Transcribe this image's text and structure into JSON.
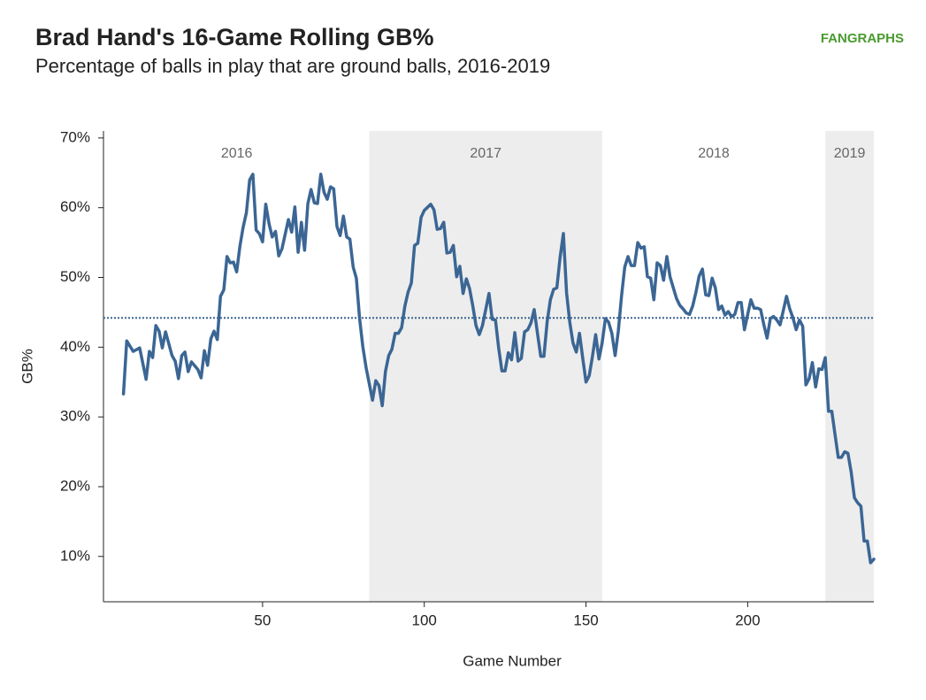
{
  "chart_data": {
    "type": "line",
    "title": "Brad Hand's 16-Game Rolling GB%",
    "subtitle": "Percentage of balls in play that are ground balls, 2016-2019",
    "logo": "FANGRAPHS",
    "x_label": "Game Number",
    "y_label": "GB%",
    "xlim": [
      1,
      239
    ],
    "ylim": [
      3.5,
      71
    ],
    "xticks": [
      50,
      100,
      150,
      200
    ],
    "yticks": [
      {
        "value": 10,
        "label": "10%"
      },
      {
        "value": 20,
        "label": "20%"
      },
      {
        "value": 30,
        "label": "30%"
      },
      {
        "value": 40,
        "label": "40%"
      },
      {
        "value": 50,
        "label": "50%"
      },
      {
        "value": 60,
        "label": "60%"
      },
      {
        "value": 70,
        "label": "70%"
      }
    ],
    "regions": [
      {
        "label": "2016",
        "start": 1,
        "end": 83,
        "shaded": false
      },
      {
        "label": "2017",
        "start": 83,
        "end": 155,
        "shaded": true
      },
      {
        "label": "2018",
        "start": 155,
        "end": 224,
        "shaded": false
      },
      {
        "label": "2019",
        "start": 224,
        "end": 239,
        "shaded": true
      }
    ],
    "region_color": "#ededed",
    "reference_line": {
      "value": 44.2,
      "color": "#3b6694"
    },
    "color": "#3b6694",
    "x": [
      7,
      8,
      10,
      12,
      14,
      15,
      16,
      17,
      18,
      19,
      20,
      22,
      23,
      24,
      25,
      26,
      27,
      28,
      30,
      31,
      32,
      33,
      34,
      35,
      36,
      37,
      38,
      39,
      40,
      41,
      42,
      43,
      44,
      45,
      46,
      47,
      48,
      49,
      50,
      51,
      52,
      53,
      54,
      55,
      56,
      58,
      59,
      60,
      61,
      62,
      63,
      64,
      65,
      66,
      67,
      68,
      69,
      70,
      71,
      72,
      73,
      74,
      75,
      76,
      77,
      78,
      79,
      80,
      81,
      82,
      83,
      84,
      85,
      86,
      87,
      88,
      89,
      90,
      91,
      92,
      93,
      94,
      95,
      96,
      97,
      98,
      99,
      100,
      102,
      103,
      104,
      105,
      106,
      107,
      108,
      109,
      110,
      111,
      112,
      113,
      114,
      115,
      116,
      117,
      118,
      119,
      120,
      121,
      122,
      123,
      124,
      125,
      126,
      127,
      128,
      129,
      130,
      131,
      132,
      133,
      134,
      135,
      136,
      137,
      138,
      139,
      140,
      141,
      142,
      143,
      144,
      145,
      146,
      147,
      148,
      149,
      150,
      151,
      152,
      153,
      154,
      155,
      156,
      157,
      158,
      159,
      160,
      161,
      162,
      163,
      164,
      165,
      166,
      167,
      168,
      169,
      170,
      171,
      172,
      173,
      174,
      175,
      176,
      177,
      178,
      179,
      180,
      181,
      182,
      183,
      184,
      185,
      186,
      187,
      188,
      189,
      190,
      191,
      192,
      193,
      194,
      195,
      196,
      197,
      198,
      199,
      200,
      201,
      202,
      203,
      204,
      205,
      206,
      207,
      208,
      209,
      210,
      212,
      213,
      214,
      215,
      216,
      217,
      218,
      219,
      220,
      221,
      222,
      223,
      224,
      225,
      226,
      227,
      228,
      229,
      230,
      231,
      232,
      233,
      234,
      235,
      236,
      237,
      238,
      239
    ],
    "values": [
      33.3,
      40.9,
      39.4,
      39.9,
      35.4,
      39.4,
      38.5,
      43.1,
      42.3,
      39.9,
      42.2,
      38.8,
      38.0,
      35.5,
      38.8,
      39.3,
      36.5,
      37.9,
      36.8,
      35.6,
      39.5,
      37.4,
      41.2,
      42.3,
      41.1,
      47.3,
      48.2,
      53.0,
      52.1,
      52.2,
      50.8,
      54.5,
      57.2,
      59.3,
      64.0,
      64.8,
      56.8,
      56.3,
      55.1,
      60.5,
      57.7,
      55.8,
      56.6,
      53.1,
      54.1,
      58.3,
      56.5,
      60.1,
      53.6,
      57.9,
      53.9,
      60.6,
      62.6,
      60.7,
      60.6,
      64.8,
      62.2,
      61.2,
      63.0,
      62.7,
      57.3,
      56.0,
      58.8,
      55.8,
      55.5,
      51.5,
      49.9,
      44.1,
      40.1,
      37.1,
      34.7,
      32.4,
      35.2,
      34.5,
      31.6,
      36.5,
      38.8,
      39.7,
      42.0,
      42.0,
      42.8,
      45.9,
      47.9,
      49.2,
      54.6,
      54.9,
      58.6,
      59.6,
      60.5,
      59.7,
      56.9,
      57.0,
      57.9,
      53.5,
      53.6,
      54.6,
      50.1,
      51.6,
      47.7,
      49.8,
      48.4,
      45.9,
      43.1,
      41.8,
      43.1,
      45.4,
      47.7,
      44.0,
      43.9,
      39.9,
      36.6,
      36.6,
      39.2,
      38.2,
      42.1,
      38.0,
      38.4,
      42.2,
      42.5,
      43.5,
      45.4,
      42.0,
      38.7,
      38.7,
      43.7,
      46.8,
      48.3,
      48.5,
      52.9,
      56.3,
      47.8,
      43.5,
      40.6,
      39.3,
      42.0,
      38.4,
      35.0,
      35.9,
      38.7,
      41.8,
      38.3,
      40.6,
      44.1,
      43.6,
      42.0,
      38.8,
      42.3,
      47.4,
      51.5,
      53.0,
      51.7,
      51.7,
      55.0,
      54.2,
      54.4,
      50.1,
      49.9,
      46.8,
      52.1,
      51.7,
      49.6,
      53.0,
      50.1,
      48.5,
      47.0,
      46.0,
      45.5,
      44.9,
      44.7,
      45.9,
      47.9,
      50.2,
      51.2,
      47.5,
      47.4,
      49.9,
      48.5,
      45.4,
      45.9,
      44.6,
      45.1,
      44.4,
      44.7,
      46.4,
      46.4,
      42.5,
      44.7,
      46.8,
      45.6,
      45.6,
      45.4,
      43.2,
      41.3,
      44.1,
      44.4,
      43.9,
      43.2,
      47.3,
      45.5,
      44.2,
      42.5,
      43.9,
      43.0,
      34.6,
      35.5,
      37.8,
      34.3,
      36.9,
      36.8,
      38.5,
      30.8,
      30.8,
      27.5,
      24.2,
      24.2,
      25.0,
      24.8,
      22.1,
      18.4,
      17.7,
      17.2,
      12.2,
      12.2,
      9.1,
      9.6
    ]
  }
}
